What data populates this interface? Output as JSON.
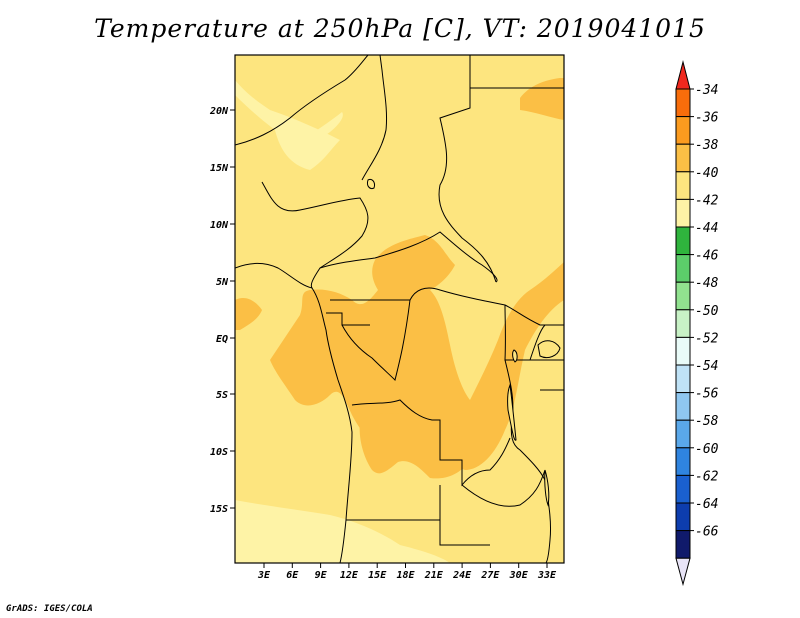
{
  "title": "Temperature at 250hPa [C], VT: 2019041015",
  "footer": "GrADS: IGES/COLA",
  "map": {
    "lat_labels": [
      "20N",
      "15N",
      "10N",
      "5N",
      "EQ",
      "5S",
      "10S",
      "15S"
    ],
    "lon_labels": [
      "3E",
      "6E",
      "9E",
      "12E",
      "15E",
      "18E",
      "21E",
      "24E",
      "27E",
      "30E",
      "33E"
    ],
    "fill_colors": {
      "band_42_40": "#fde57f",
      "band_40_38": "#fbbf45",
      "band_44_42": "#fef3a6"
    }
  },
  "colorbar": {
    "labels": [
      "-34",
      "-36",
      "-38",
      "-40",
      "-42",
      "-44",
      "-46",
      "-48",
      "-50",
      "-52",
      "-54",
      "-56",
      "-58",
      "-60",
      "-62",
      "-64",
      "-66"
    ],
    "colors": [
      "#f0281e",
      "#f86d0b",
      "#fb9b1f",
      "#fbbf45",
      "#fde57f",
      "#fef3a6",
      "#2fb43d",
      "#5ccd6a",
      "#91e28f",
      "#c8f2c6",
      "#e9fbf8",
      "#bfe2f6",
      "#8fc7f0",
      "#5aa8ea",
      "#2f84df",
      "#1a60cf",
      "#0d3dae",
      "#101a6b",
      "#e8e4f7"
    ]
  }
}
